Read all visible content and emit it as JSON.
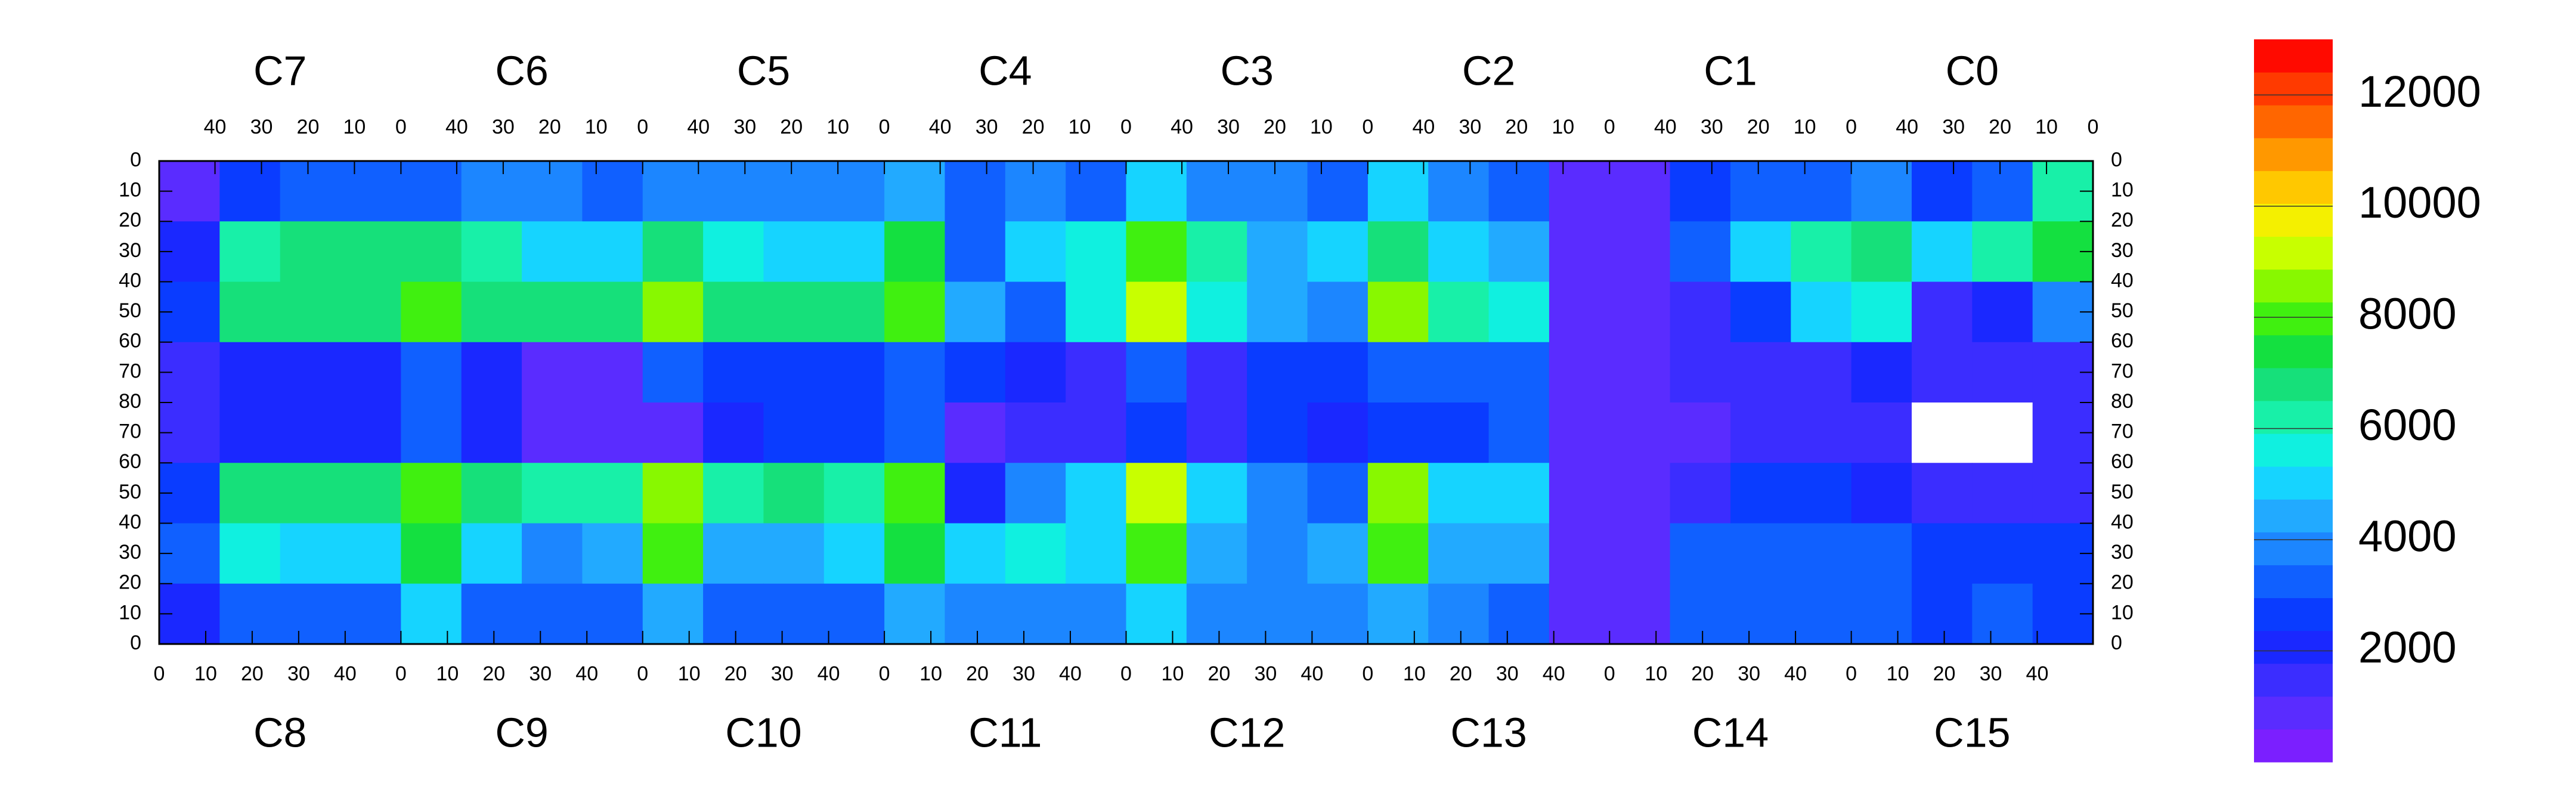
{
  "chart_data": {
    "type": "heatmap",
    "chip_labels_top": [
      "C7",
      "C6",
      "C5",
      "C4",
      "C3",
      "C2",
      "C1",
      "C0"
    ],
    "chip_labels_bottom": [
      "C8",
      "C9",
      "C10",
      "C11",
      "C12",
      "C13",
      "C14",
      "C15"
    ],
    "xlim": [
      0,
      416
    ],
    "ylim": [
      0,
      160
    ],
    "xticks_top": [
      {
        "value": 12,
        "label": "40"
      },
      {
        "value": 22,
        "label": "30"
      },
      {
        "value": 32,
        "label": "20"
      },
      {
        "value": 42,
        "label": "10"
      },
      {
        "value": 52,
        "label": "0"
      },
      {
        "value": 64,
        "label": "40"
      },
      {
        "value": 74,
        "label": "30"
      },
      {
        "value": 84,
        "label": "20"
      },
      {
        "value": 94,
        "label": "10"
      },
      {
        "value": 104,
        "label": "0"
      },
      {
        "value": 116,
        "label": "40"
      },
      {
        "value": 126,
        "label": "30"
      },
      {
        "value": 136,
        "label": "20"
      },
      {
        "value": 146,
        "label": "10"
      },
      {
        "value": 156,
        "label": "0"
      },
      {
        "value": 168,
        "label": "40"
      },
      {
        "value": 178,
        "label": "30"
      },
      {
        "value": 188,
        "label": "20"
      },
      {
        "value": 198,
        "label": "10"
      },
      {
        "value": 208,
        "label": "0"
      },
      {
        "value": 220,
        "label": "40"
      },
      {
        "value": 230,
        "label": "30"
      },
      {
        "value": 240,
        "label": "20"
      },
      {
        "value": 250,
        "label": "10"
      },
      {
        "value": 260,
        "label": "0"
      },
      {
        "value": 272,
        "label": "40"
      },
      {
        "value": 282,
        "label": "30"
      },
      {
        "value": 292,
        "label": "20"
      },
      {
        "value": 302,
        "label": "10"
      },
      {
        "value": 312,
        "label": "0"
      },
      {
        "value": 324,
        "label": "40"
      },
      {
        "value": 334,
        "label": "30"
      },
      {
        "value": 344,
        "label": "20"
      },
      {
        "value": 354,
        "label": "10"
      },
      {
        "value": 364,
        "label": "0"
      },
      {
        "value": 376,
        "label": "40"
      },
      {
        "value": 386,
        "label": "30"
      },
      {
        "value": 396,
        "label": "20"
      },
      {
        "value": 406,
        "label": "10"
      },
      {
        "value": 416,
        "label": "0"
      }
    ],
    "xticks_bottom": [
      0,
      10,
      20,
      30,
      40,
      {
        "value": 52,
        "label": "0"
      },
      {
        "value": 62,
        "label": "10"
      },
      {
        "value": 72,
        "label": "20"
      },
      {
        "value": 82,
        "label": "30"
      },
      {
        "value": 92,
        "label": "40"
      },
      {
        "value": 104,
        "label": "0"
      },
      {
        "value": 114,
        "label": "10"
      },
      {
        "value": 124,
        "label": "20"
      },
      {
        "value": 134,
        "label": "30"
      },
      {
        "value": 144,
        "label": "40"
      },
      {
        "value": 156,
        "label": "0"
      },
      {
        "value": 166,
        "label": "10"
      },
      {
        "value": 176,
        "label": "20"
      },
      {
        "value": 186,
        "label": "30"
      },
      {
        "value": 196,
        "label": "40"
      },
      {
        "value": 208,
        "label": "0"
      },
      {
        "value": 218,
        "label": "10"
      },
      {
        "value": 228,
        "label": "20"
      },
      {
        "value": 238,
        "label": "30"
      },
      {
        "value": 248,
        "label": "40"
      },
      {
        "value": 260,
        "label": "0"
      },
      {
        "value": 270,
        "label": "10"
      },
      {
        "value": 280,
        "label": "20"
      },
      {
        "value": 290,
        "label": "30"
      },
      {
        "value": 300,
        "label": "40"
      },
      {
        "value": 312,
        "label": "0"
      },
      {
        "value": 322,
        "label": "10"
      },
      {
        "value": 332,
        "label": "20"
      },
      {
        "value": 342,
        "label": "30"
      },
      {
        "value": 352,
        "label": "40"
      },
      {
        "value": 364,
        "label": "0"
      },
      {
        "value": 374,
        "label": "10"
      },
      {
        "value": 384,
        "label": "20"
      },
      {
        "value": 394,
        "label": "30"
      },
      {
        "value": 404,
        "label": "40"
      }
    ],
    "yticks": [
      0,
      10,
      20,
      30,
      40,
      50,
      60,
      70,
      80,
      {
        "value": 90,
        "label": "70"
      },
      {
        "value": 100,
        "label": "60"
      },
      {
        "value": 110,
        "label": "50"
      },
      {
        "value": 120,
        "label": "40"
      },
      {
        "value": 130,
        "label": "30"
      },
      {
        "value": 140,
        "label": "20"
      },
      {
        "value": 150,
        "label": "10"
      },
      {
        "value": 160,
        "label": "0"
      }
    ],
    "zlim": [
      0,
      13000
    ],
    "zticks": [
      2000,
      4000,
      6000,
      8000,
      10000,
      12000
    ],
    "colors": [
      "#7b1fff",
      "#5a2cff",
      "#3b2dff",
      "#1a28ff",
      "#0a3cff",
      "#1060ff",
      "#1c86ff",
      "#22aaff",
      "#16d4ff",
      "#10f0e0",
      "#18f0a8",
      "#16e07a",
      "#14e040",
      "#40f010",
      "#88f800",
      "#c8ff00",
      "#f4f000",
      "#ffc800",
      "#ff9800",
      "#ff6600",
      "#ff3a00",
      "#ff0a00"
    ],
    "z": [
      [
        1000,
        2500,
        3500,
        3000,
        3500,
        4000,
        4000,
        3500,
        4000,
        4000,
        4000,
        4000,
        4500,
        3500,
        4000,
        3500,
        5000,
        4000,
        4000,
        3500,
        5000,
        4000,
        3500,
        1000,
        1000,
        2500,
        3500,
        3500,
        4000,
        2500,
        3500,
        6000
      ],
      [
        2000,
        6000,
        6500,
        6500,
        7000,
        6000,
        5000,
        5000,
        7000,
        5500,
        5000,
        5000,
        7500,
        3500,
        5000,
        5500,
        8000,
        6000,
        4500,
        5000,
        7000,
        5000,
        4500,
        1000,
        800,
        3000,
        5000,
        6000,
        7000,
        5000,
        6000,
        7500
      ],
      [
        2500,
        6500,
        7000,
        7000,
        8000,
        7000,
        6500,
        6500,
        8500,
        6500,
        6500,
        6500,
        8000,
        4500,
        3000,
        5500,
        9000,
        5500,
        4500,
        4000,
        8500,
        6000,
        5500,
        1000,
        800,
        1500,
        2500,
        5000,
        5500,
        1500,
        2000,
        4000
      ],
      [
        1500,
        2000,
        2000,
        2000,
        3000,
        2000,
        1000,
        1000,
        3000,
        2500,
        2500,
        2500,
        3000,
        2500,
        2000,
        1500,
        3500,
        1500,
        2500,
        2500,
        3500,
        3000,
        3000,
        800,
        600,
        1500,
        1500,
        1500,
        2000,
        1500,
        1500,
        1500
      ],
      [
        1500,
        2000,
        2000,
        2000,
        3000,
        2000,
        1000,
        1000,
        1000,
        2000,
        2500,
        2500,
        3000,
        1000,
        1500,
        1500,
        2500,
        1500,
        2500,
        2000,
        2500,
        2500,
        3000,
        800,
        600,
        800,
        1500,
        1500,
        1500,
        0,
        0,
        1500
      ],
      [
        2500,
        6500,
        6500,
        6500,
        8000,
        6500,
        6000,
        6000,
        8500,
        6000,
        6500,
        6000,
        8000,
        2000,
        4000,
        5000,
        9000,
        5000,
        4000,
        3000,
        8500,
        5000,
        5000,
        1000,
        600,
        1500,
        2500,
        2500,
        2000,
        1500,
        1500,
        1500
      ],
      [
        3500,
        5500,
        5000,
        5000,
        7500,
        5000,
        4000,
        4500,
        8000,
        4500,
        4500,
        5000,
        7500,
        5000,
        5500,
        5000,
        8000,
        4500,
        4000,
        4500,
        8000,
        4500,
        4500,
        1000,
        700,
        3000,
        3500,
        3500,
        3000,
        2500,
        2500,
        2500
      ],
      [
        2000,
        3000,
        3500,
        3000,
        5000,
        3500,
        3000,
        3000,
        4500,
        3500,
        3500,
        3500,
        4500,
        4000,
        4000,
        4000,
        5000,
        4000,
        4000,
        4000,
        4500,
        4000,
        3000,
        1000,
        800,
        3000,
        3500,
        3500,
        3000,
        2500,
        3000,
        2500
      ]
    ]
  }
}
